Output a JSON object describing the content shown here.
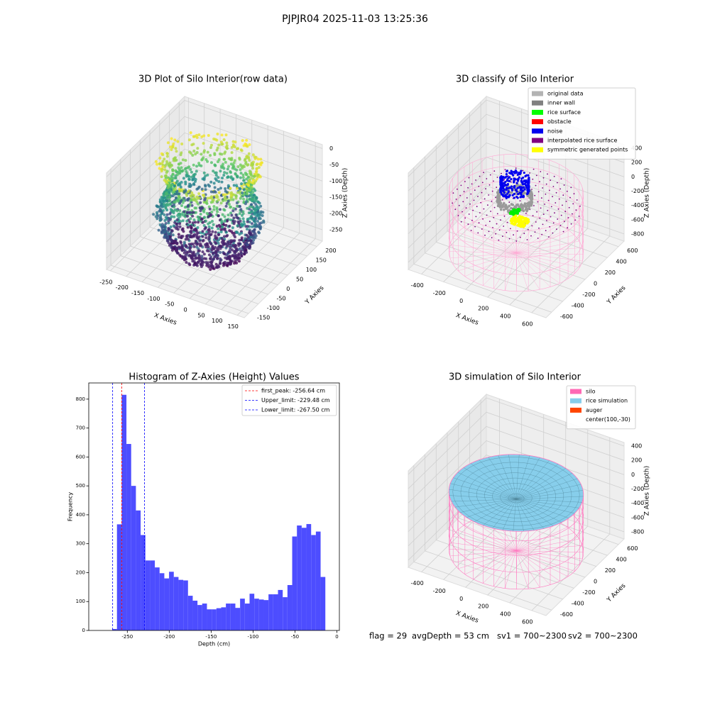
{
  "title": "PJPJR04 2025-11-03 13:25:36",
  "chart_data": [
    {
      "type": "scatter3d",
      "title": "3D Plot of Silo Interior(row data)",
      "xlabel": "X Axies",
      "ylabel": "Y Axies",
      "zlabel": "Z Axies (Depth)",
      "xlim": [
        -262,
        172
      ],
      "xticks": [
        -250,
        -200,
        -150,
        -100,
        -50,
        0,
        50,
        100,
        150
      ],
      "ylim": [
        -172,
        228
      ],
      "yticks": [
        -150,
        -100,
        -50,
        0,
        50,
        100,
        150,
        200
      ],
      "zlim": [
        -285,
        12
      ],
      "zticks": [
        -250,
        -200,
        -150,
        -100,
        -50,
        0
      ]
    },
    {
      "type": "classify3d",
      "title": "3D classify of Silo Interior",
      "xlabel": "X Axies",
      "ylabel": "Y Axies",
      "zlabel": "Z Axies (Depth)",
      "xlim": [
        -520,
        730
      ],
      "xticks": [
        -400,
        -200,
        0,
        200,
        400,
        600
      ],
      "ylim": [
        -700,
        700
      ],
      "yticks": [
        -600,
        -400,
        -200,
        0,
        200,
        400,
        600
      ],
      "zlim": [
        -900,
        450
      ],
      "zticks": [
        -800,
        -600,
        -400,
        -200,
        0,
        200,
        400
      ],
      "legend": [
        {
          "name": "original data",
          "color": "#b3b3b3"
        },
        {
          "name": "inner wall",
          "color": "#808080"
        },
        {
          "name": "rice surface",
          "color": "#00ff00"
        },
        {
          "name": "obstacle",
          "color": "#ff0000"
        },
        {
          "name": "noise",
          "color": "#0000ee"
        },
        {
          "name": "interpolated rice surface",
          "color": "#800080"
        },
        {
          "name": "symmetric generated points",
          "color": "#ffff00"
        }
      ]
    },
    {
      "type": "histogram",
      "title": "Histogram of Z-Axies (Height) Values",
      "xlabel": "Depth (cm)",
      "ylabel": "Frequency",
      "color": "#4d4dff",
      "bins": [
        -268,
        -262.35,
        -256.7,
        -251.05,
        -245.4,
        -239.75,
        -234.1,
        -228.45,
        -222.8,
        -217.15,
        -211.5,
        -205.85,
        -200.2,
        -194.55,
        -188.9,
        -183.25,
        -177.6,
        -171.95,
        -166.3,
        -160.65,
        -155,
        -149.35,
        -143.7,
        -138.05,
        -132.4,
        -126.75,
        -121.1,
        -115.45,
        -109.8,
        -104.15,
        -98.5,
        -92.85,
        -87.2,
        -81.55,
        -75.9,
        -70.25,
        -64.6,
        -58.95,
        -53.3,
        -47.65,
        -42,
        -36.35,
        -30.7,
        -25.05,
        -19.4,
        -13.75
      ],
      "counts": [
        5,
        367,
        815,
        645,
        500,
        415,
        330,
        242,
        242,
        218,
        198,
        180,
        203,
        185,
        175,
        173,
        120,
        103,
        88,
        93,
        73,
        73,
        77,
        80,
        93,
        93,
        78,
        110,
        93,
        127,
        110,
        107,
        105,
        125,
        125,
        140,
        115,
        157,
        325,
        363,
        355,
        368,
        330,
        342,
        185
      ],
      "xlim": [
        -296,
        3
      ],
      "xticks": [
        -250,
        -200,
        -150,
        -100,
        -50,
        0
      ],
      "ylim": [
        0,
        856
      ],
      "yticks": [
        0,
        100,
        200,
        300,
        400,
        500,
        600,
        700,
        800
      ],
      "lines": [
        {
          "name": "first_peak: -256.64 cm",
          "value": -256.64,
          "color": "#ff0000"
        },
        {
          "name": "Upper_limit: -229.48 cm",
          "value": -229.48,
          "color": "#0000ff"
        },
        {
          "name": "Lower_limit: -267.50 cm",
          "value": -267.5,
          "color": "#0000ff"
        }
      ]
    },
    {
      "type": "simulation3d",
      "title": "3D simulation of Silo Interior",
      "xlabel": "X Axies",
      "ylabel": "Y Axies",
      "zlabel": "Z Axies (Depth)",
      "xlim": [
        -520,
        730
      ],
      "xticks": [
        -400,
        -200,
        0,
        200,
        400,
        600
      ],
      "ylim": [
        -700,
        700
      ],
      "yticks": [
        -600,
        -400,
        -200,
        0,
        200,
        400,
        600
      ],
      "zlim": [
        -900,
        450
      ],
      "zticks": [
        -800,
        -600,
        -400,
        -200,
        0,
        200,
        400
      ],
      "legend": [
        {
          "name": "silo",
          "color": "#ff69b4"
        },
        {
          "name": "rice simulation",
          "color": "#87ceeb"
        },
        {
          "name": "auger",
          "color": "#ff4500"
        },
        {
          "name": "center(100,-30)",
          "color": "#ffffff"
        }
      ]
    }
  ],
  "status": [
    "flag = 29",
    "avgDepth = 53 cm",
    "sv1 = 700~2300",
    "sv2 = 700~2300"
  ]
}
